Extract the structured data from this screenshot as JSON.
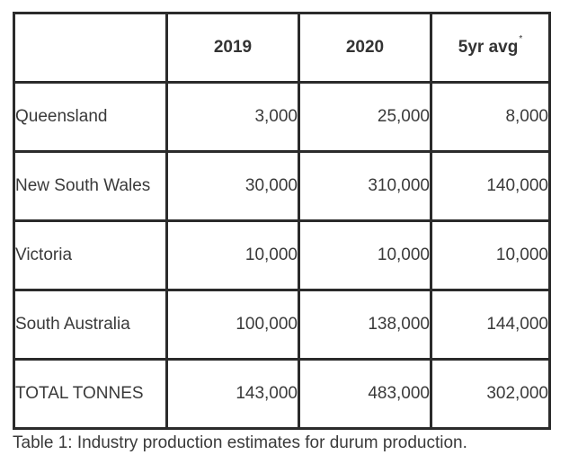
{
  "table": {
    "header": {
      "corner": "",
      "columns": [
        "2019",
        "2020",
        "5yr avg"
      ],
      "footnote_marker": "*"
    },
    "rows": [
      {
        "label": "Queensland",
        "values": [
          "3,000",
          "25,000",
          "8,000"
        ]
      },
      {
        "label": "New South Wales",
        "values": [
          "30,000",
          "310,000",
          "140,000"
        ]
      },
      {
        "label": "Victoria",
        "values": [
          "10,000",
          "10,000",
          "10,000"
        ]
      },
      {
        "label": "South Australia",
        "values": [
          "100,000",
          "138,000",
          "144,000"
        ]
      },
      {
        "label": "TOTAL TONNES",
        "values": [
          "143,000",
          "483,000",
          "302,000"
        ]
      }
    ]
  },
  "caption": "Table 1: Industry production estimates for durum production.",
  "colors": {
    "border": "#2b2b2b",
    "text": "#3a3a3a"
  }
}
